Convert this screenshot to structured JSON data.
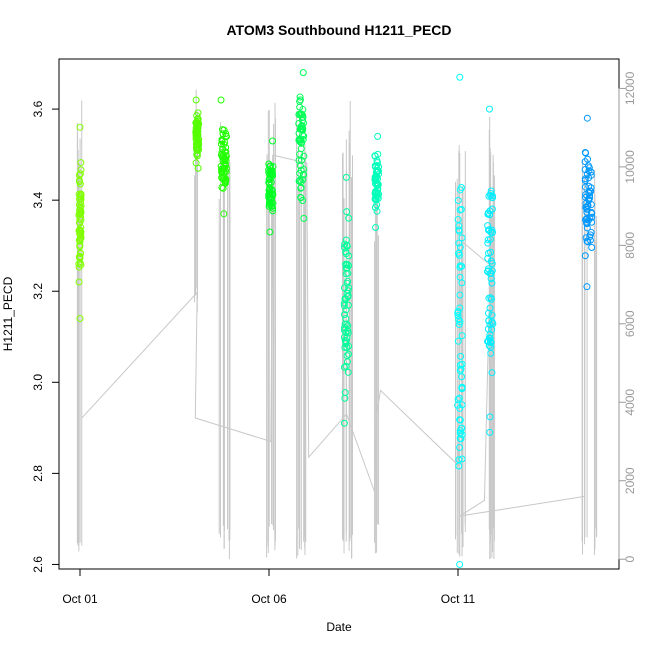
{
  "chart_data": {
    "type": "scatter",
    "title": "ATOM3 Southbound H1211_PECD",
    "xlabel": "Date",
    "ylabel": "H1211_PECD",
    "x_ticks": [
      "Oct 01",
      "Oct 06",
      "Oct 11"
    ],
    "x_range": [
      "Sep 30 19:00",
      "Oct 15 07:00"
    ],
    "y_ticks": [
      "2.6",
      "2.8",
      "3.0",
      "3.2",
      "3.4",
      "3.6"
    ],
    "ylim": [
      2.59,
      3.71
    ],
    "y2_ticks": [
      "0",
      "2000",
      "4000",
      "6000",
      "8000",
      "10000",
      "12000"
    ],
    "y2lim": [
      -250,
      12750
    ],
    "secondary_series_color": "#c8c8c8",
    "grid": false,
    "legend": "none",
    "groups": [
      {
        "day": 1.0,
        "width": 0.06,
        "ymin": 3.14,
        "ymax": 3.56,
        "color": "#80ff00"
      },
      {
        "day": 4.1,
        "width": 0.08,
        "ymin": 3.47,
        "ymax": 3.62,
        "color": "#55ff00"
      },
      {
        "day": 4.8,
        "width": 0.15,
        "ymin": 3.37,
        "ymax": 3.62,
        "color": "#22ff00"
      },
      {
        "day": 6.05,
        "width": 0.12,
        "ymin": 3.33,
        "ymax": 3.53,
        "color": "#00ff22"
      },
      {
        "day": 6.85,
        "width": 0.15,
        "ymin": 3.36,
        "ymax": 3.68,
        "color": "#00ff55"
      },
      {
        "day": 8.05,
        "width": 0.12,
        "ymin": 2.91,
        "ymax": 3.45,
        "color": "#00ff99"
      },
      {
        "day": 8.85,
        "width": 0.1,
        "ymin": 3.34,
        "ymax": 3.54,
        "color": "#00ffbb"
      },
      {
        "day": 11.05,
        "width": 0.12,
        "ymin": 2.6,
        "ymax": 3.67,
        "color": "#00ffff"
      },
      {
        "day": 11.85,
        "width": 0.15,
        "ymin": 2.89,
        "ymax": 3.6,
        "color": "#00eeff"
      },
      {
        "day": 14.45,
        "width": 0.18,
        "ymin": 3.21,
        "ymax": 3.58,
        "color": "#0099ff"
      }
    ],
    "spikes_y2": [
      {
        "day": 1.0,
        "low": 0,
        "high": 11900
      },
      {
        "day": 4.1,
        "low": 6200,
        "high": 12000
      },
      {
        "day": 4.75,
        "low": 0,
        "high": 11200
      },
      {
        "day": 4.9,
        "low": 0,
        "high": 11000
      },
      {
        "day": 6.0,
        "low": 0,
        "high": 11700
      },
      {
        "day": 6.15,
        "low": 0,
        "high": 12000
      },
      {
        "day": 6.8,
        "low": 0,
        "high": 11500
      },
      {
        "day": 6.95,
        "low": 0,
        "high": 11000
      },
      {
        "day": 8.0,
        "low": 0,
        "high": 11300
      },
      {
        "day": 8.15,
        "low": 0,
        "high": 11700
      },
      {
        "day": 8.85,
        "low": 0,
        "high": 10500
      },
      {
        "day": 11.0,
        "low": 0,
        "high": 11800
      },
      {
        "day": 11.15,
        "low": 0,
        "high": 10800
      },
      {
        "day": 11.8,
        "low": 0,
        "high": 11300
      },
      {
        "day": 11.95,
        "low": 0,
        "high": 11000
      },
      {
        "day": 14.35,
        "low": 0,
        "high": 10500
      },
      {
        "day": 14.6,
        "low": 0,
        "high": 10200
      }
    ],
    "trend_y2": [
      [
        1.05,
        3600
      ],
      [
        4.1,
        6800
      ],
      [
        4.05,
        3600
      ],
      [
        6.05,
        3000
      ],
      [
        6.1,
        10300
      ],
      [
        7.0,
        10100
      ],
      [
        7.05,
        2600
      ],
      [
        8.05,
        3700
      ],
      [
        8.8,
        1700
      ],
      [
        8.85,
        3700
      ],
      [
        8.95,
        4300
      ],
      [
        11.0,
        2400
      ],
      [
        11.1,
        8100
      ],
      [
        11.85,
        7500
      ],
      [
        11.7,
        1500
      ],
      [
        11.05,
        1100
      ],
      [
        14.35,
        1600
      ]
    ]
  }
}
